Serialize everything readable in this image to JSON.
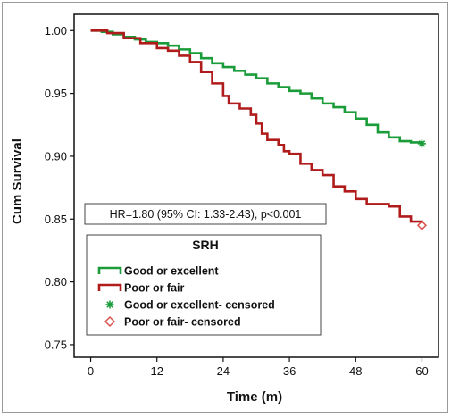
{
  "chart_data": {
    "type": "line",
    "title": "",
    "xlabel": "Time (m)",
    "ylabel": "Cum Survival",
    "xlim": [
      -3,
      63
    ],
    "ylim": [
      0.74,
      1.013
    ],
    "x_ticks": [
      0,
      12,
      24,
      36,
      48,
      60
    ],
    "x_tick_labels": [
      "0",
      "12",
      "24",
      "36",
      "48",
      "60"
    ],
    "y_ticks": [
      0.75,
      0.8,
      0.85,
      0.9,
      0.95,
      1.0
    ],
    "y_tick_labels": [
      "0.75",
      "0.80",
      "0.85",
      "0.90",
      "0.95",
      "1.00"
    ],
    "grid": false,
    "annotation": "HR=1.80 (95% CI: 1.33-2.43), p<0.001",
    "legend": {
      "title": "SRH",
      "placement": "lower-left",
      "entries": [
        {
          "label": "Good or excellent",
          "marker": "step-line",
          "color": "#1a9c3a"
        },
        {
          "label": "Poor or fair",
          "marker": "step-line",
          "color": "#b01c1c"
        },
        {
          "label": "Good or excellent- censored",
          "marker": "asterisk",
          "color": "#1a9c3a"
        },
        {
          "label": "Poor or fair- censored",
          "marker": "diamond",
          "color": "#d9534f"
        }
      ]
    },
    "series": [
      {
        "name": "Good or excellent",
        "color": "#1a9c3a",
        "points": [
          [
            0,
            1.0
          ],
          [
            2,
            0.999
          ],
          [
            4,
            0.997
          ],
          [
            6,
            0.995
          ],
          [
            8,
            0.993
          ],
          [
            10,
            0.991
          ],
          [
            12,
            0.99
          ],
          [
            14,
            0.988
          ],
          [
            16,
            0.985
          ],
          [
            18,
            0.982
          ],
          [
            20,
            0.978
          ],
          [
            22,
            0.974
          ],
          [
            24,
            0.971
          ],
          [
            26,
            0.968
          ],
          [
            28,
            0.965
          ],
          [
            30,
            0.962
          ],
          [
            32,
            0.958
          ],
          [
            34,
            0.955
          ],
          [
            36,
            0.952
          ],
          [
            38,
            0.95
          ],
          [
            40,
            0.946
          ],
          [
            42,
            0.942
          ],
          [
            44,
            0.939
          ],
          [
            46,
            0.935
          ],
          [
            48,
            0.93
          ],
          [
            50,
            0.925
          ],
          [
            52,
            0.919
          ],
          [
            54,
            0.915
          ],
          [
            56,
            0.912
          ],
          [
            58,
            0.911
          ],
          [
            60,
            0.91
          ]
        ],
        "censored_at": [
          60
        ]
      },
      {
        "name": "Poor or fair",
        "color": "#b01c1c",
        "points": [
          [
            0,
            1.0
          ],
          [
            3,
            0.998
          ],
          [
            6,
            0.994
          ],
          [
            9,
            0.99
          ],
          [
            12,
            0.986
          ],
          [
            14,
            0.984
          ],
          [
            16,
            0.98
          ],
          [
            18,
            0.975
          ],
          [
            20,
            0.967
          ],
          [
            22,
            0.958
          ],
          [
            24,
            0.948
          ],
          [
            25,
            0.942
          ],
          [
            27,
            0.938
          ],
          [
            29,
            0.933
          ],
          [
            30,
            0.926
          ],
          [
            31,
            0.918
          ],
          [
            32,
            0.913
          ],
          [
            34,
            0.909
          ],
          [
            35,
            0.904
          ],
          [
            36,
            0.902
          ],
          [
            38,
            0.894
          ],
          [
            40,
            0.889
          ],
          [
            42,
            0.885
          ],
          [
            44,
            0.876
          ],
          [
            46,
            0.872
          ],
          [
            48,
            0.866
          ],
          [
            50,
            0.862
          ],
          [
            54,
            0.86
          ],
          [
            56,
            0.852
          ],
          [
            58,
            0.848
          ],
          [
            60,
            0.845
          ]
        ],
        "censored_at": [
          60
        ]
      }
    ]
  }
}
